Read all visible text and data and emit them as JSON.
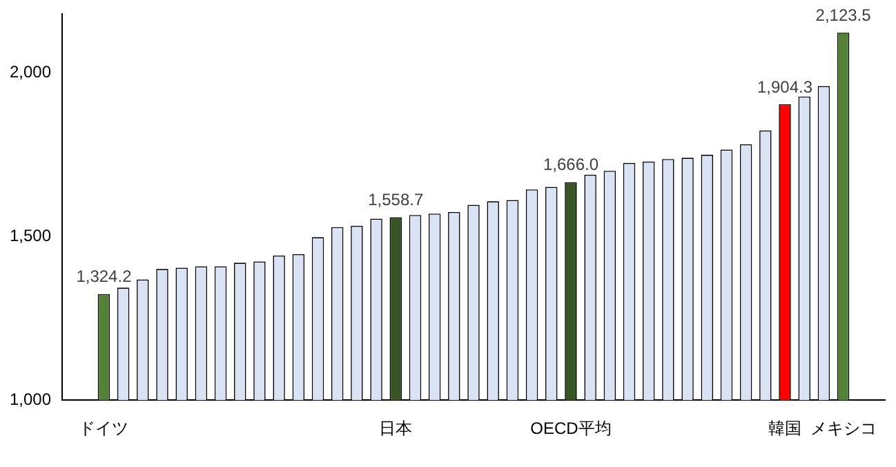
{
  "chart_data": {
    "type": "bar",
    "categories": [
      "ドイツ",
      null,
      null,
      null,
      null,
      null,
      null,
      null,
      null,
      null,
      null,
      null,
      null,
      null,
      null,
      "日本",
      null,
      null,
      null,
      null,
      null,
      null,
      null,
      null,
      "OECD平均",
      null,
      null,
      null,
      null,
      null,
      null,
      null,
      null,
      null,
      null,
      "韓国",
      null,
      null,
      "メキシコ"
    ],
    "values": [
      1324.2,
      1344,
      1369,
      1401,
      1405,
      1409,
      1409,
      1420,
      1424,
      1442,
      1446,
      1498,
      1529,
      1533,
      1555,
      1558.7,
      1566,
      1570,
      1575,
      1597,
      1608,
      1612,
      1644,
      1652,
      1666.0,
      1689,
      1701,
      1725,
      1729,
      1737,
      1741,
      1750,
      1766,
      1782,
      1824,
      1904.3,
      1928,
      1960,
      2123.5
    ],
    "colors": [
      "#548235",
      "#dae3f3",
      "#dae3f3",
      "#dae3f3",
      "#dae3f3",
      "#dae3f3",
      "#dae3f3",
      "#dae3f3",
      "#dae3f3",
      "#dae3f3",
      "#dae3f3",
      "#dae3f3",
      "#dae3f3",
      "#dae3f3",
      "#dae3f3",
      "#375623",
      "#dae3f3",
      "#dae3f3",
      "#dae3f3",
      "#dae3f3",
      "#dae3f3",
      "#dae3f3",
      "#dae3f3",
      "#dae3f3",
      "#375623",
      "#dae3f3",
      "#dae3f3",
      "#dae3f3",
      "#dae3f3",
      "#dae3f3",
      "#dae3f3",
      "#dae3f3",
      "#dae3f3",
      "#dae3f3",
      "#dae3f3",
      "#ff0000",
      "#dae3f3",
      "#dae3f3",
      "#548235"
    ],
    "value_labels": [
      "1,324.2",
      null,
      null,
      null,
      null,
      null,
      null,
      null,
      null,
      null,
      null,
      null,
      null,
      null,
      null,
      "1,558.7",
      null,
      null,
      null,
      null,
      null,
      null,
      null,
      null,
      "1,666.0",
      null,
      null,
      null,
      null,
      null,
      null,
      null,
      null,
      null,
      null,
      "1,904.3",
      null,
      null,
      "2,123.5"
    ],
    "ylim": [
      1000,
      2180
    ],
    "yticks": [
      {
        "value": 1000,
        "label": "1,000"
      },
      {
        "value": 1500,
        "label": "1,500"
      },
      {
        "value": 2000,
        "label": "2,000"
      }
    ],
    "grid": false,
    "legend": false
  }
}
